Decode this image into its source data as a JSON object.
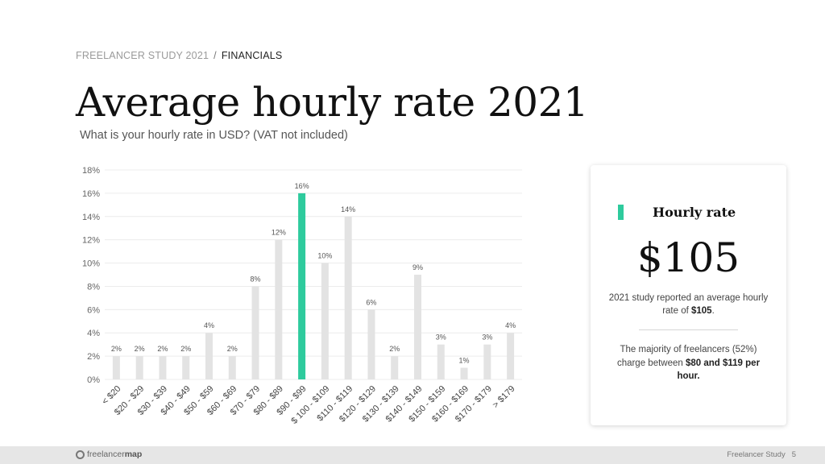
{
  "breadcrumb": {
    "section": "FREELANCER STUDY 2021",
    "separator": "/",
    "current": "FINANCIALS"
  },
  "title": "Average hourly rate 2021",
  "subtitle": "What is your hourly rate in USD? (VAT not included)",
  "chart_data": {
    "type": "bar",
    "categories": [
      "< $20",
      "$20 - $29",
      "$30 - $39",
      "$40 - $49",
      "$50 - $59",
      "$60 - $69",
      "$70 - $79",
      "$80 - $89",
      "$90 - $99",
      "$ 100 - $109",
      "$110 - $119",
      "$120 - $129",
      "$130 - $139",
      "$140 - $149",
      "$150 - $159",
      "$160 - $169",
      "$170 - $179",
      "> $179"
    ],
    "values": [
      2,
      2,
      2,
      2,
      4,
      2,
      8,
      12,
      16,
      10,
      14,
      6,
      2,
      9,
      3,
      1,
      3,
      4
    ],
    "data_labels": [
      "2%",
      "2%",
      "2%",
      "2%",
      "4%",
      "2%",
      "8%",
      "12%",
      "16%",
      "10%",
      "14%",
      "6%",
      "2%",
      "9%",
      "3%",
      "1%",
      "3%",
      "4%"
    ],
    "ylim": [
      0,
      18
    ],
    "yticks": [
      "0%",
      "2%",
      "4%",
      "6%",
      "8%",
      "10%",
      "12%",
      "14%",
      "16%",
      "18%"
    ],
    "highlight_index": 8,
    "bar_color": "#e3e3e3",
    "highlight_color": "#2ecb9d",
    "grid": true
  },
  "card": {
    "title": "Hourly rate",
    "value": "$105",
    "note1_pre": "2021 study reported an average hourly rate of ",
    "note1_bold": "$105",
    "note1_post": ".",
    "note2_pre": "The majority of freelancers (52%) charge between ",
    "note2_bold": "$80 and $119 per hour.",
    "accent_color": "#2ecb9d"
  },
  "footer": {
    "logo_light": "freelancer",
    "logo_bold": "map",
    "label": "Freelancer Study",
    "page": "5"
  }
}
